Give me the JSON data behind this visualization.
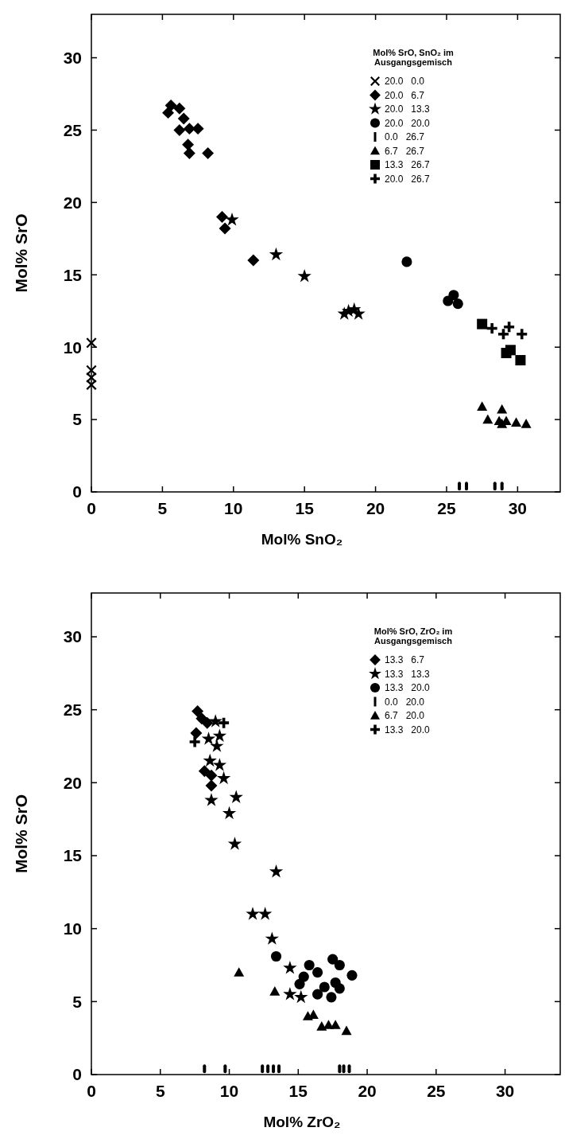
{
  "chart_data": [
    {
      "type": "scatter",
      "xlabel": "Mol% SnO₂",
      "ylabel": "Mol% SrO",
      "legend_title": "Mol% SrO, SnO₂ im Ausgangsgemisch",
      "legend": "top right",
      "xlim": [
        0,
        33
      ],
      "ylim": [
        0,
        33
      ],
      "xticks": [
        0,
        5,
        10,
        15,
        20,
        25,
        30
      ],
      "yticks": [
        0,
        5,
        10,
        15,
        20,
        25,
        30
      ],
      "series": [
        {
          "name": "20.0 0.0",
          "color": "#000000",
          "marker": "cross",
          "x": [
            0,
            0,
            0,
            0
          ],
          "values": [
            10.3,
            8.4,
            7.9,
            7.4
          ]
        },
        {
          "name": "20.0 6.7",
          "color": "#000000",
          "marker": "diamond",
          "x": [
            5.6,
            5.4,
            6.2,
            6.5,
            6.2,
            6.9,
            7.5,
            6.8,
            6.9,
            8.2,
            9.2,
            9.4,
            11.4
          ],
          "values": [
            26.7,
            26.2,
            26.5,
            25.8,
            25.0,
            25.1,
            25.1,
            24.0,
            23.4,
            23.4,
            19.0,
            18.2,
            16.0
          ]
        },
        {
          "name": "20.0 13.3",
          "color": "#000000",
          "marker": "star",
          "x": [
            9.9,
            13.0,
            15.0,
            17.8,
            18.1,
            18.5,
            18.8
          ],
          "values": [
            18.8,
            16.4,
            14.9,
            12.3,
            12.5,
            12.6,
            12.3
          ]
        },
        {
          "name": "20.0 20.0",
          "color": "#000000",
          "marker": "circle",
          "x": [
            22.2,
            25.1,
            25.5,
            25.8
          ],
          "values": [
            15.9,
            13.2,
            13.6,
            13.0
          ]
        },
        {
          "name": "0.0 26.7",
          "color": "#000000",
          "x": [
            25.9,
            26.4,
            28.4,
            28.9
          ],
          "values": [
            0.4,
            0.4,
            0.4,
            0.4
          ]
        },
        {
          "name": "6.7 26.7",
          "color": "#000000",
          "marker": "triangle",
          "x": [
            27.5,
            27.9,
            28.9,
            28.7,
            28.9,
            29.2,
            29.9,
            30.6
          ],
          "values": [
            5.9,
            5.0,
            5.7,
            4.9,
            4.7,
            4.9,
            4.8,
            4.7
          ]
        },
        {
          "name": "13.3 26.7",
          "color": "#000000",
          "marker": "square",
          "x": [
            27.5,
            29.2,
            29.5,
            30.2
          ],
          "values": [
            11.6,
            9.6,
            9.8,
            9.1
          ]
        },
        {
          "name": "20.0 26.7",
          "color": "#000000",
          "marker": "plus",
          "x": [
            28.2,
            29.4,
            29.0,
            30.3
          ],
          "values": [
            11.3,
            11.4,
            10.9,
            10.9
          ]
        }
      ]
    },
    {
      "type": "scatter",
      "xlabel": "Mol% ZrO₂",
      "ylabel": "Mol% SrO",
      "legend_title": "Mol% SrO, ZrO₂ im Ausgangsgemisch",
      "legend": "top right",
      "xlim": [
        0,
        34
      ],
      "ylim": [
        0,
        33
      ],
      "xticks": [
        0,
        5,
        10,
        15,
        20,
        25,
        30
      ],
      "yticks": [
        0,
        5,
        10,
        15,
        20,
        25,
        30
      ],
      "series": [
        {
          "name": "13.3 6.7",
          "color": "#000000",
          "marker": "diamond",
          "x": [
            7.7,
            8.0,
            7.6,
            8.2,
            8.7,
            8.7,
            8.4
          ],
          "values": [
            24.9,
            24.4,
            23.4,
            20.8,
            20.5,
            19.8,
            24.1
          ]
        },
        {
          "name": "13.3 13.3",
          "color": "#000000",
          "marker": "star",
          "x": [
            9.0,
            8.5,
            9.3,
            9.1,
            8.6,
            9.3,
            9.6,
            8.7,
            10.5,
            10.0,
            10.4,
            13.4,
            11.7,
            12.6,
            13.1,
            14.4,
            14.4,
            15.2
          ],
          "values": [
            24.2,
            23.0,
            23.2,
            22.5,
            21.5,
            21.2,
            20.3,
            18.8,
            19.0,
            17.9,
            15.8,
            13.9,
            11.0,
            11.0,
            9.3,
            7.3,
            5.5,
            5.3
          ]
        },
        {
          "name": "13.3 20.0",
          "color": "#000000",
          "marker": "circle",
          "x": [
            13.4,
            15.8,
            16.4,
            17.5,
            18.0,
            18.9,
            15.4,
            15.1,
            17.7,
            18.0,
            16.4,
            17.4,
            16.9
          ],
          "values": [
            8.1,
            7.5,
            7.0,
            7.9,
            7.5,
            6.8,
            6.7,
            6.2,
            6.3,
            5.9,
            5.5,
            5.3,
            6.0
          ]
        },
        {
          "name": "0.0 20.0",
          "color": "#000000",
          "x": [
            8.2,
            9.7,
            12.4,
            12.8,
            13.2,
            13.6,
            18.0,
            18.3,
            18.7
          ],
          "values": [
            0.4,
            0.4,
            0.4,
            0.4,
            0.4,
            0.4,
            0.4,
            0.4,
            0.4
          ]
        },
        {
          "name": "6.7 20.0",
          "color": "#000000",
          "marker": "triangle",
          "x": [
            10.7,
            13.3,
            15.7,
            16.1,
            16.7,
            17.2,
            17.7,
            18.5
          ],
          "values": [
            7.0,
            5.7,
            4.0,
            4.1,
            3.3,
            3.4,
            3.4,
            3.0
          ]
        },
        {
          "name": "13.3 20.0",
          "color": "#000000",
          "marker": "plus",
          "x": [
            7.5,
            9.6
          ],
          "values": [
            22.8,
            24.1
          ]
        }
      ]
    }
  ]
}
